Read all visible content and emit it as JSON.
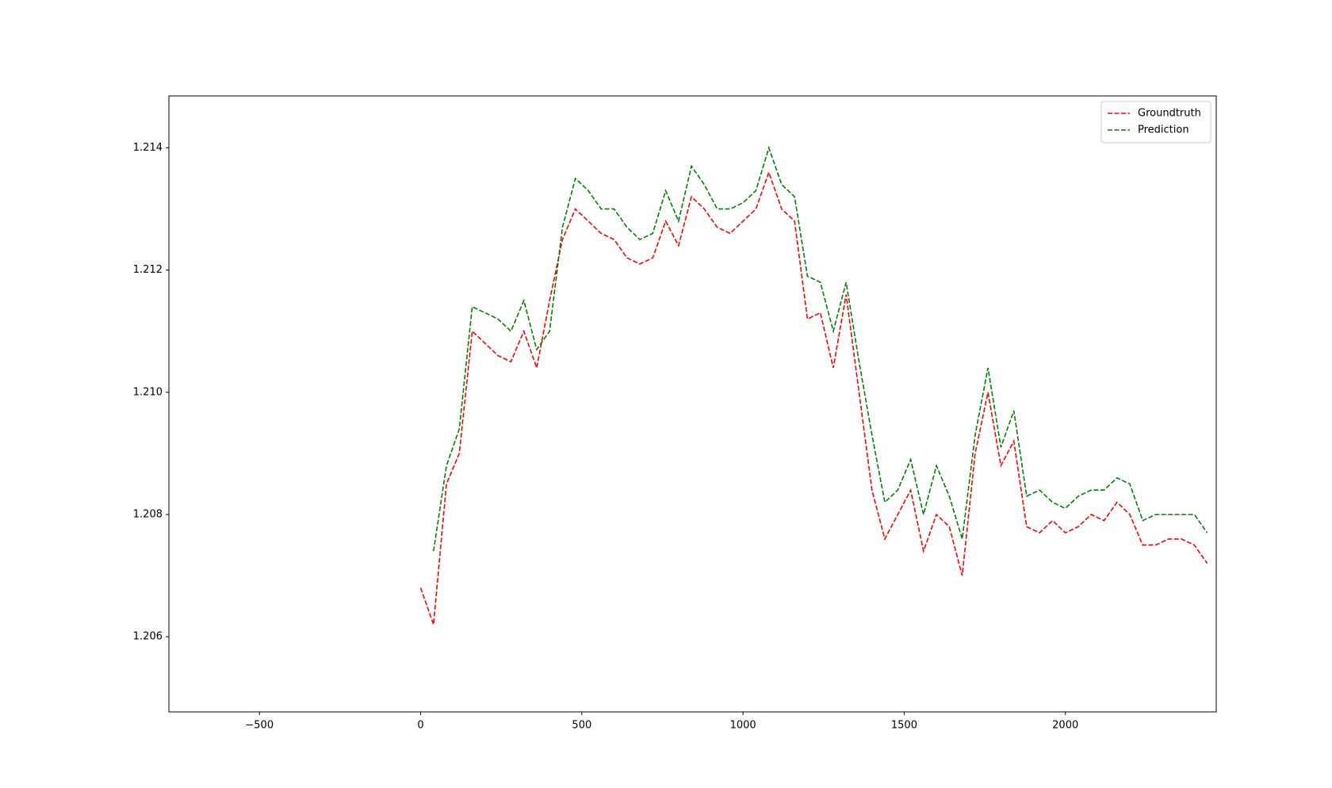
{
  "chart_data": {
    "type": "line",
    "x": [
      0,
      40,
      80,
      120,
      160,
      200,
      240,
      280,
      320,
      360,
      400,
      440,
      480,
      520,
      560,
      600,
      640,
      680,
      720,
      760,
      800,
      840,
      880,
      920,
      960,
      1000,
      1040,
      1080,
      1120,
      1160,
      1200,
      1240,
      1280,
      1320,
      1360,
      1400,
      1440,
      1480,
      1520,
      1560,
      1600,
      1640,
      1680,
      1720,
      1760,
      1800,
      1840,
      1880,
      1920,
      1960,
      2000,
      2040,
      2080,
      2120,
      2160,
      2200,
      2240,
      2280,
      2320,
      2360,
      2400,
      2440
    ],
    "series": [
      {
        "name": "Groundtruth",
        "color": "#ff0000",
        "values": [
          1.2068,
          1.2062,
          1.2085,
          1.209,
          1.211,
          1.2108,
          1.2106,
          1.2105,
          1.211,
          1.2104,
          1.2115,
          1.2125,
          1.213,
          1.2128,
          1.2126,
          1.2125,
          1.2122,
          1.2121,
          1.2122,
          1.2128,
          1.2124,
          1.2132,
          1.213,
          1.2127,
          1.2126,
          1.2128,
          1.213,
          1.2136,
          1.213,
          1.2128,
          1.2112,
          1.2113,
          1.2104,
          1.2116,
          1.21,
          1.2084,
          1.2076,
          1.208,
          1.2084,
          1.2074,
          1.208,
          1.2078,
          1.207,
          1.209,
          1.21,
          1.2088,
          1.2092,
          1.2078,
          1.2077,
          1.2079,
          1.2077,
          1.2078,
          1.208,
          1.2079,
          1.2082,
          1.208,
          1.2075,
          1.2075,
          1.2076,
          1.2076,
          1.2075,
          1.2072
        ]
      },
      {
        "name": "Prediction",
        "color": "#008000",
        "values": [
          null,
          1.2074,
          1.2088,
          1.2094,
          1.2114,
          1.2113,
          1.2112,
          1.211,
          1.2115,
          1.2107,
          1.211,
          1.2127,
          1.2135,
          1.2133,
          1.213,
          1.213,
          1.2127,
          1.2125,
          1.2126,
          1.2133,
          1.2128,
          1.2137,
          1.2134,
          1.213,
          1.213,
          1.2131,
          1.2133,
          1.214,
          1.2134,
          1.2132,
          1.2119,
          1.2118,
          1.211,
          1.2118,
          1.2105,
          1.2093,
          1.2082,
          1.2084,
          1.2089,
          1.208,
          1.2088,
          1.2083,
          1.2076,
          1.2093,
          1.2104,
          1.2091,
          1.2097,
          1.2083,
          1.2084,
          1.2082,
          1.2081,
          1.2083,
          1.2084,
          1.2084,
          1.2086,
          1.2085,
          1.2079,
          1.208,
          1.208,
          1.208,
          1.208,
          1.2077
        ]
      }
    ],
    "xlim": [
      -781,
      2468
    ],
    "ylim": [
      1.20477,
      1.21485
    ],
    "xticks": [
      {
        "value": -500,
        "label": "−500"
      },
      0,
      500,
      1000,
      1500,
      2000
    ],
    "yticks": [
      1.206,
      1.208,
      {
        "value": 1.21,
        "label": "1.210"
      },
      1.212,
      1.214
    ],
    "dashed": true,
    "legend": "upper right"
  }
}
